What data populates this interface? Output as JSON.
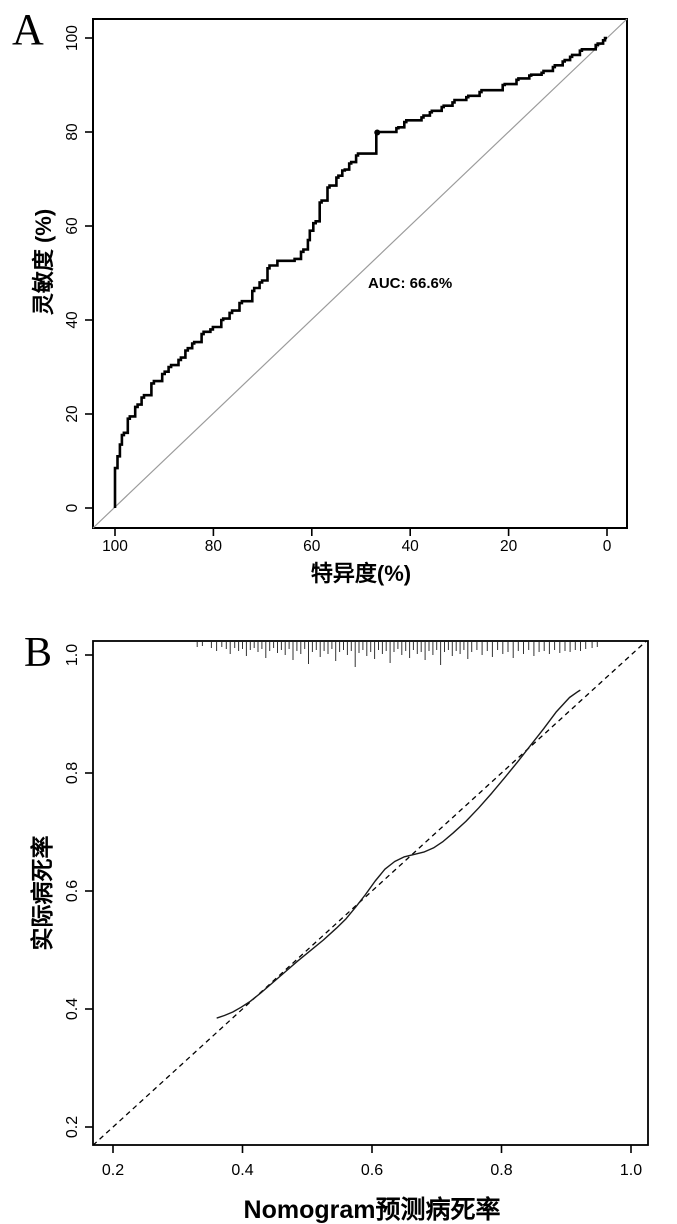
{
  "figure": {
    "panels": [
      {
        "id": "a",
        "letter": "A"
      },
      {
        "id": "b",
        "letter": "B"
      }
    ]
  },
  "chart_data": [
    {
      "type": "line",
      "subtype": "roc-step-curve",
      "panel": "A",
      "title": "",
      "xlabel": "特异度(%)",
      "ylabel": "灵敏度 (%)",
      "annotation": "AUC: 66.6%",
      "auc_percent": 66.6,
      "x_axis_reversed": true,
      "x_ticks": [
        "100",
        "80",
        "60",
        "40",
        "20",
        "0"
      ],
      "y_ticks": [
        "0",
        "20",
        "40",
        "60",
        "80",
        "100"
      ],
      "xlim": [
        104.5,
        -4.1
      ],
      "ylim": [
        -4.3,
        104.3
      ],
      "diagonal_reference_line": true,
      "marker_point": [
        46.7,
        79.9
      ],
      "points_spec_sens": [
        [
          100,
          0
        ],
        [
          100,
          6
        ],
        [
          99.5,
          8.5
        ],
        [
          99,
          11
        ],
        [
          98.6,
          13.5
        ],
        [
          98.2,
          15.5
        ],
        [
          97.4,
          16
        ],
        [
          97,
          19
        ],
        [
          95.9,
          19.5
        ],
        [
          95.4,
          21.5
        ],
        [
          94.6,
          22
        ],
        [
          94.1,
          23.5
        ],
        [
          92.6,
          24
        ],
        [
          92.1,
          26.5
        ],
        [
          90.4,
          27
        ],
        [
          89.9,
          28.5
        ],
        [
          89.1,
          29
        ],
        [
          88.6,
          30
        ],
        [
          87.1,
          30.4
        ],
        [
          86.6,
          31.5
        ],
        [
          85.7,
          32
        ],
        [
          85.2,
          33.5
        ],
        [
          84.3,
          34
        ],
        [
          83.9,
          35
        ],
        [
          82.4,
          35.3
        ],
        [
          82,
          37
        ],
        [
          80.6,
          37.5
        ],
        [
          80.1,
          38
        ],
        [
          78.4,
          38.5
        ],
        [
          78,
          40
        ],
        [
          76.7,
          40.3
        ],
        [
          76.2,
          41.5
        ],
        [
          74.7,
          42
        ],
        [
          74.2,
          43.6
        ],
        [
          72.1,
          44
        ],
        [
          71.7,
          46.2
        ],
        [
          70.6,
          46.8
        ],
        [
          70.1,
          48
        ],
        [
          69,
          48.4
        ],
        [
          68.6,
          51
        ],
        [
          67,
          51.6
        ],
        [
          63.5,
          52.6
        ],
        [
          62.2,
          53
        ],
        [
          61.7,
          54.5
        ],
        [
          60.8,
          55
        ],
        [
          60.4,
          57
        ],
        [
          59.7,
          59
        ],
        [
          59.2,
          60.6
        ],
        [
          58.4,
          61
        ],
        [
          58,
          65
        ],
        [
          56.8,
          65.4
        ],
        [
          56.4,
          68.2
        ],
        [
          55,
          68.6
        ],
        [
          54.6,
          70.3
        ],
        [
          53.8,
          70.7
        ],
        [
          53.3,
          71.8
        ],
        [
          52.4,
          72
        ],
        [
          52,
          73.3
        ],
        [
          51,
          73.6
        ],
        [
          50.6,
          75
        ],
        [
          46.9,
          75.4
        ],
        [
          46.7,
          79.9
        ],
        [
          42.8,
          80
        ],
        [
          42.4,
          80.8
        ],
        [
          41.2,
          81
        ],
        [
          40.8,
          82.1
        ],
        [
          37.7,
          82.5
        ],
        [
          37.3,
          83.1
        ],
        [
          36,
          83.5
        ],
        [
          35.6,
          84.2
        ],
        [
          33.6,
          84.5
        ],
        [
          33.2,
          85.3
        ],
        [
          31.4,
          85.6
        ],
        [
          31,
          86.3
        ],
        [
          28.6,
          86.8
        ],
        [
          28.2,
          87.4
        ],
        [
          25.9,
          87.7
        ],
        [
          25.5,
          88.5
        ],
        [
          21.2,
          88.9
        ],
        [
          20.8,
          90
        ],
        [
          18.4,
          90.2
        ],
        [
          18,
          91.1
        ],
        [
          15.8,
          91.4
        ],
        [
          15.4,
          92
        ],
        [
          13.3,
          92.2
        ],
        [
          12.9,
          92.6
        ],
        [
          11,
          93
        ],
        [
          10.6,
          93.8
        ],
        [
          9,
          94.2
        ],
        [
          8.6,
          95
        ],
        [
          7.5,
          95.3
        ],
        [
          7.1,
          96
        ],
        [
          5.5,
          96.4
        ],
        [
          5.1,
          97.3
        ],
        [
          2.3,
          97.6
        ],
        [
          1.9,
          98.5
        ],
        [
          0.8,
          98.8
        ],
        [
          0.4,
          99.5
        ],
        [
          0,
          100
        ]
      ]
    },
    {
      "type": "line",
      "subtype": "calibration-curve",
      "panel": "B",
      "title": "",
      "xlabel": "Nomogram预测病死率",
      "ylabel": "实际病死率",
      "x_ticks": [
        "0.2",
        "0.4",
        "0.6",
        "0.8",
        "1.0"
      ],
      "y_ticks": [
        "0.2",
        "0.4",
        "0.6",
        "0.8",
        "1.0"
      ],
      "xlim": [
        0.169,
        1.026
      ],
      "ylim": [
        0.169,
        1.024
      ],
      "ideal_line": {
        "style": "dashed",
        "from": [
          0.169,
          0.169
        ],
        "to": [
          1.024,
          1.024
        ]
      },
      "curve_points": [
        [
          0.361,
          0.385
        ],
        [
          0.372,
          0.389
        ],
        [
          0.385,
          0.395
        ],
        [
          0.398,
          0.403
        ],
        [
          0.412,
          0.413
        ],
        [
          0.428,
          0.427
        ],
        [
          0.445,
          0.443
        ],
        [
          0.465,
          0.462
        ],
        [
          0.485,
          0.481
        ],
        [
          0.505,
          0.499
        ],
        [
          0.525,
          0.517
        ],
        [
          0.545,
          0.537
        ],
        [
          0.56,
          0.553
        ],
        [
          0.575,
          0.573
        ],
        [
          0.59,
          0.594
        ],
        [
          0.605,
          0.617
        ],
        [
          0.62,
          0.637
        ],
        [
          0.635,
          0.65
        ],
        [
          0.65,
          0.658
        ],
        [
          0.665,
          0.662
        ],
        [
          0.68,
          0.666
        ],
        [
          0.695,
          0.673
        ],
        [
          0.71,
          0.684
        ],
        [
          0.725,
          0.698
        ],
        [
          0.745,
          0.718
        ],
        [
          0.765,
          0.741
        ],
        [
          0.785,
          0.766
        ],
        [
          0.805,
          0.792
        ],
        [
          0.825,
          0.819
        ],
        [
          0.845,
          0.847
        ],
        [
          0.865,
          0.875
        ],
        [
          0.885,
          0.904
        ],
        [
          0.905,
          0.928
        ],
        [
          0.918,
          0.938
        ],
        [
          0.921,
          0.94
        ]
      ],
      "rug_ticks_x_len": [
        [
          0.33,
          5
        ],
        [
          0.338,
          4
        ],
        [
          0.352,
          6
        ],
        [
          0.36,
          9
        ],
        [
          0.368,
          5
        ],
        [
          0.375,
          7
        ],
        [
          0.381,
          12
        ],
        [
          0.388,
          6
        ],
        [
          0.394,
          9
        ],
        [
          0.4,
          7
        ],
        [
          0.406,
          14
        ],
        [
          0.412,
          8
        ],
        [
          0.418,
          6
        ],
        [
          0.424,
          10
        ],
        [
          0.43,
          7
        ],
        [
          0.436,
          16
        ],
        [
          0.442,
          9
        ],
        [
          0.448,
          6
        ],
        [
          0.454,
          11
        ],
        [
          0.46,
          8
        ],
        [
          0.466,
          13
        ],
        [
          0.472,
          7
        ],
        [
          0.478,
          18
        ],
        [
          0.484,
          9
        ],
        [
          0.49,
          12
        ],
        [
          0.496,
          7
        ],
        [
          0.502,
          22
        ],
        [
          0.508,
          10
        ],
        [
          0.514,
          8
        ],
        [
          0.52,
          15
        ],
        [
          0.526,
          9
        ],
        [
          0.532,
          12
        ],
        [
          0.538,
          7
        ],
        [
          0.544,
          19
        ],
        [
          0.55,
          10
        ],
        [
          0.556,
          8
        ],
        [
          0.562,
          13
        ],
        [
          0.568,
          9
        ],
        [
          0.574,
          25
        ],
        [
          0.58,
          11
        ],
        [
          0.586,
          8
        ],
        [
          0.592,
          14
        ],
        [
          0.598,
          10
        ],
        [
          0.604,
          17
        ],
        [
          0.61,
          8
        ],
        [
          0.616,
          12
        ],
        [
          0.622,
          9
        ],
        [
          0.628,
          21
        ],
        [
          0.634,
          10
        ],
        [
          0.64,
          7
        ],
        [
          0.646,
          13
        ],
        [
          0.652,
          9
        ],
        [
          0.658,
          16
        ],
        [
          0.664,
          8
        ],
        [
          0.67,
          12
        ],
        [
          0.676,
          10
        ],
        [
          0.682,
          18
        ],
        [
          0.688,
          9
        ],
        [
          0.694,
          13
        ],
        [
          0.7,
          8
        ],
        [
          0.706,
          23
        ],
        [
          0.712,
          10
        ],
        [
          0.718,
          8
        ],
        [
          0.724,
          14
        ],
        [
          0.73,
          9
        ],
        [
          0.736,
          12
        ],
        [
          0.742,
          8
        ],
        [
          0.748,
          17
        ],
        [
          0.754,
          10
        ],
        [
          0.762,
          8
        ],
        [
          0.77,
          13
        ],
        [
          0.778,
          9
        ],
        [
          0.786,
          15
        ],
        [
          0.794,
          8
        ],
        [
          0.802,
          12
        ],
        [
          0.81,
          10
        ],
        [
          0.818,
          16
        ],
        [
          0.826,
          9
        ],
        [
          0.834,
          12
        ],
        [
          0.842,
          8
        ],
        [
          0.85,
          14
        ],
        [
          0.858,
          10
        ],
        [
          0.866,
          9
        ],
        [
          0.874,
          12
        ],
        [
          0.882,
          8
        ],
        [
          0.89,
          11
        ],
        [
          0.898,
          9
        ],
        [
          0.906,
          10
        ],
        [
          0.914,
          8
        ],
        [
          0.922,
          9
        ],
        [
          0.93,
          7
        ],
        [
          0.94,
          6
        ],
        [
          0.948,
          5
        ]
      ]
    }
  ]
}
